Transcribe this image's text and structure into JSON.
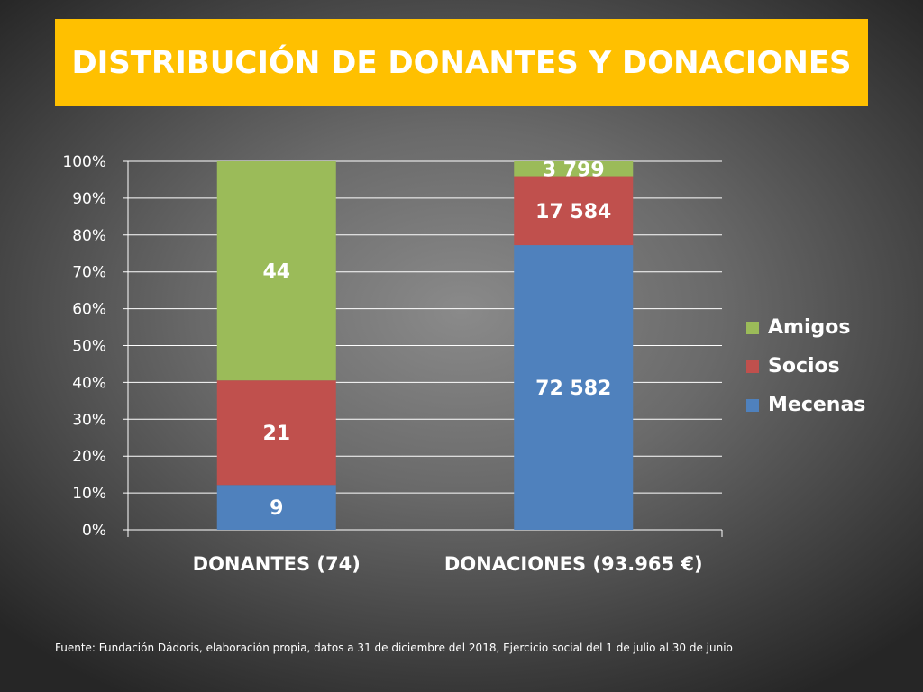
{
  "title": "DISTRIBUCIÓN DE DONANTES Y DONACIONES",
  "source": "Fuente: Fundación Dádoris, elaboración propia, datos a 31 de diciembre del 2018, Ejercicio social del 1 de julio al 30 de junio",
  "colors": {
    "banner": "#ffc000",
    "mecenas": "#4f81bd",
    "socios": "#c0504d",
    "amigos": "#9bbb59"
  },
  "chart_data": {
    "type": "bar",
    "stacking": "percent",
    "categories": [
      "DONANTES (74)",
      "DONACIONES (93.965 €)"
    ],
    "series": [
      {
        "name": "Mecenas",
        "values": [
          9,
          72582
        ],
        "labels": [
          "9",
          "72 582"
        ],
        "color": "#4f81bd"
      },
      {
        "name": "Socios",
        "values": [
          21,
          17584
        ],
        "labels": [
          "21",
          "17 584"
        ],
        "color": "#c0504d"
      },
      {
        "name": "Amigos",
        "values": [
          44,
          3799
        ],
        "labels": [
          "44",
          "3 799"
        ],
        "color": "#9bbb59"
      }
    ],
    "y_ticks": [
      "0%",
      "10%",
      "20%",
      "30%",
      "40%",
      "50%",
      "60%",
      "70%",
      "80%",
      "90%",
      "100%"
    ],
    "ylim": [
      0,
      100
    ],
    "grid": true,
    "legend_position": "right",
    "legend": [
      "Amigos",
      "Socios",
      "Mecenas"
    ]
  }
}
